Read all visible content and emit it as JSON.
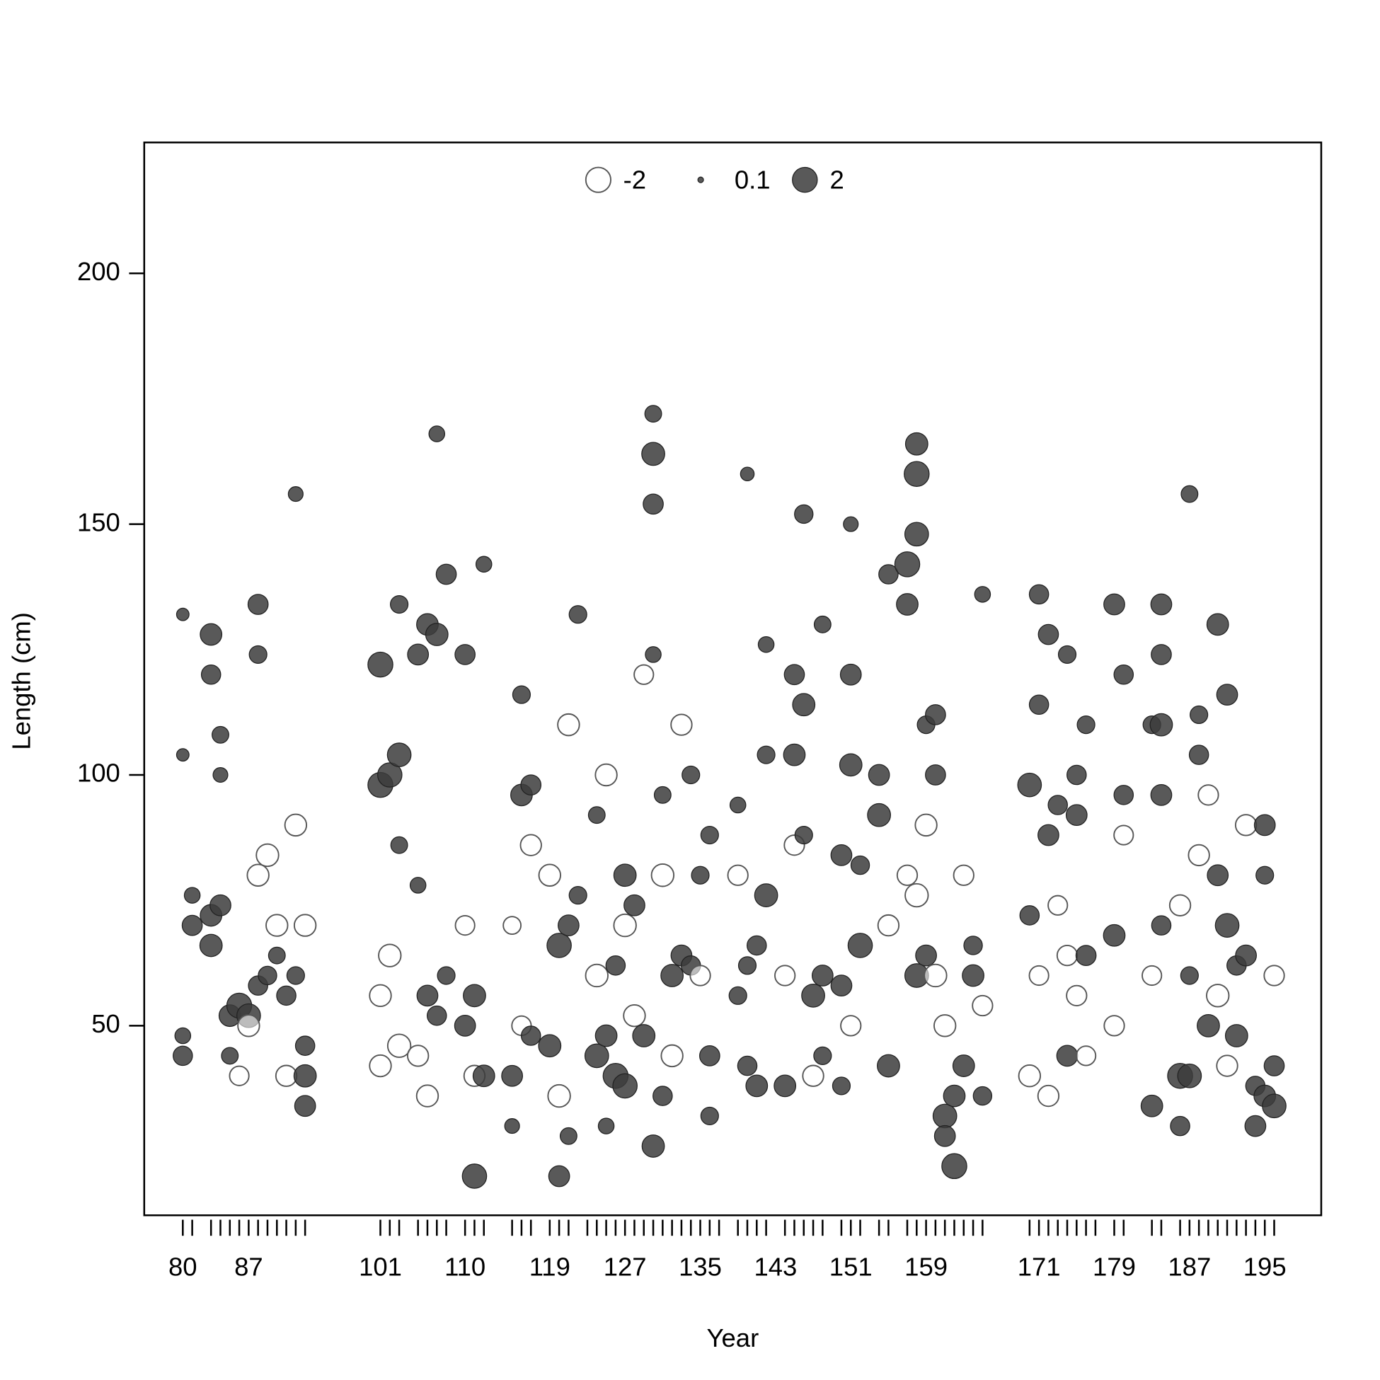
{
  "chart_data": {
    "type": "scatter",
    "x_label": "Year",
    "y_label": "Length (cm)",
    "xlim": [
      75.9,
      201
    ],
    "ylim": [
      12.2,
      226.1
    ],
    "xticks": [
      80,
      87,
      101,
      110,
      119,
      127,
      135,
      143,
      151,
      159,
      171,
      179,
      187,
      195
    ],
    "xminor": [
      80,
      81,
      83,
      84,
      85,
      86,
      87,
      88,
      89,
      90,
      91,
      92,
      93,
      101,
      102,
      103,
      105,
      106,
      107,
      108,
      110,
      111,
      112,
      115,
      116,
      117,
      119,
      120,
      121,
      123,
      124,
      125,
      126,
      127,
      128,
      129,
      130,
      131,
      132,
      133,
      134,
      135,
      136,
      137,
      139,
      140,
      141,
      142,
      144,
      145,
      146,
      147,
      148,
      150,
      151,
      152,
      154,
      155,
      157,
      158,
      159,
      160,
      161,
      162,
      163,
      164,
      165,
      170,
      171,
      172,
      173,
      174,
      175,
      176,
      177,
      179,
      180,
      183,
      184,
      186,
      187,
      188,
      189,
      190,
      191,
      192,
      193,
      194,
      195,
      196
    ],
    "yticks": [
      50,
      100,
      150,
      200
    ],
    "legend": {
      "values": [
        -2,
        0.1,
        2
      ]
    },
    "positive_color": "#3c3c3c",
    "negative_color": "#ffffff",
    "points": [
      [
        80,
        44,
        1.2
      ],
      [
        80,
        48,
        0.8
      ],
      [
        80,
        132,
        0.5
      ],
      [
        80,
        104,
        0.5
      ],
      [
        81,
        70,
        1.3
      ],
      [
        81,
        76,
        0.8
      ],
      [
        83,
        128,
        1.5
      ],
      [
        83,
        120,
        1.2
      ],
      [
        83,
        66,
        1.6
      ],
      [
        83,
        72,
        1.5
      ],
      [
        84,
        108,
        0.9
      ],
      [
        84,
        100,
        0.7
      ],
      [
        84,
        74,
        1.4
      ],
      [
        85,
        52,
        1.5
      ],
      [
        85,
        44,
        0.9
      ],
      [
        86,
        54,
        2.0
      ],
      [
        86,
        40,
        -1.2
      ],
      [
        87,
        52,
        1.8
      ],
      [
        87,
        50,
        -1.5
      ],
      [
        88,
        134,
        1.3
      ],
      [
        88,
        124,
        1.0
      ],
      [
        88,
        58,
        1.2
      ],
      [
        88,
        80,
        -1.5
      ],
      [
        89,
        60,
        1.1
      ],
      [
        89,
        84,
        -1.6
      ],
      [
        90,
        64,
        0.9
      ],
      [
        90,
        70,
        -1.5
      ],
      [
        91,
        56,
        1.2
      ],
      [
        91,
        40,
        -1.4
      ],
      [
        92,
        156,
        0.7
      ],
      [
        92,
        60,
        1.0
      ],
      [
        92,
        90,
        -1.5
      ],
      [
        93,
        40,
        1.6
      ],
      [
        93,
        34,
        1.4
      ],
      [
        93,
        46,
        1.2
      ],
      [
        93,
        70,
        -1.5
      ],
      [
        101,
        122,
        2.0
      ],
      [
        101,
        98,
        2.0
      ],
      [
        101,
        56,
        -1.5
      ],
      [
        101,
        42,
        -1.5
      ],
      [
        102,
        100,
        1.9
      ],
      [
        102,
        64,
        -1.6
      ],
      [
        103,
        104,
        1.8
      ],
      [
        103,
        134,
        1.0
      ],
      [
        103,
        86,
        0.9
      ],
      [
        103,
        46,
        -1.7
      ],
      [
        105,
        124,
        1.4
      ],
      [
        105,
        78,
        0.8
      ],
      [
        105,
        44,
        -1.4
      ],
      [
        106,
        130,
        1.5
      ],
      [
        106,
        56,
        1.4
      ],
      [
        106,
        36,
        -1.5
      ],
      [
        107,
        128,
        1.6
      ],
      [
        107,
        168,
        0.8
      ],
      [
        107,
        52,
        1.2
      ],
      [
        108,
        140,
        1.3
      ],
      [
        108,
        60,
        1.0
      ],
      [
        110,
        124,
        1.3
      ],
      [
        110,
        50,
        1.4
      ],
      [
        110,
        70,
        -1.2
      ],
      [
        111,
        56,
        1.6
      ],
      [
        111,
        20,
        1.9
      ],
      [
        111,
        40,
        -1.4
      ],
      [
        112,
        40,
        1.5
      ],
      [
        112,
        142,
        0.8
      ],
      [
        115,
        40,
        1.4
      ],
      [
        115,
        30,
        0.7
      ],
      [
        115,
        70,
        -1.0
      ],
      [
        116,
        96,
        1.5
      ],
      [
        116,
        116,
        1.0
      ],
      [
        116,
        50,
        -1.2
      ],
      [
        117,
        98,
        1.3
      ],
      [
        117,
        48,
        1.2
      ],
      [
        117,
        86,
        -1.4
      ],
      [
        119,
        46,
        1.6
      ],
      [
        119,
        80,
        -1.5
      ],
      [
        120,
        66,
        1.9
      ],
      [
        120,
        20,
        1.4
      ],
      [
        120,
        36,
        -1.6
      ],
      [
        121,
        70,
        1.4
      ],
      [
        121,
        28,
        0.9
      ],
      [
        121,
        110,
        -1.5
      ],
      [
        122,
        132,
        1.0
      ],
      [
        122,
        76,
        1.0
      ],
      [
        124,
        44,
        1.8
      ],
      [
        124,
        92,
        0.9
      ],
      [
        124,
        60,
        -1.6
      ],
      [
        125,
        48,
        1.5
      ],
      [
        125,
        30,
        0.8
      ],
      [
        125,
        100,
        -1.5
      ],
      [
        126,
        40,
        2.0
      ],
      [
        126,
        62,
        1.2
      ],
      [
        127,
        38,
        1.9
      ],
      [
        127,
        80,
        1.6
      ],
      [
        127,
        70,
        -1.6
      ],
      [
        128,
        74,
        1.4
      ],
      [
        128,
        52,
        -1.5
      ],
      [
        129,
        48,
        1.6
      ],
      [
        129,
        120,
        -1.2
      ],
      [
        130,
        164,
        1.7
      ],
      [
        130,
        154,
        1.3
      ],
      [
        130,
        172,
        0.9
      ],
      [
        130,
        26,
        1.6
      ],
      [
        130,
        124,
        0.8
      ],
      [
        131,
        96,
        0.9
      ],
      [
        131,
        36,
        1.2
      ],
      [
        131,
        80,
        -1.6
      ],
      [
        132,
        60,
        1.6
      ],
      [
        132,
        44,
        -1.5
      ],
      [
        133,
        64,
        1.4
      ],
      [
        133,
        110,
        -1.4
      ],
      [
        134,
        100,
        1.0
      ],
      [
        134,
        62,
        1.2
      ],
      [
        135,
        80,
        1.0
      ],
      [
        135,
        60,
        -1.3
      ],
      [
        136,
        44,
        1.3
      ],
      [
        136,
        88,
        1.0
      ],
      [
        136,
        32,
        1.0
      ],
      [
        139,
        56,
        1.0
      ],
      [
        139,
        94,
        0.8
      ],
      [
        139,
        80,
        -1.3
      ],
      [
        140,
        62,
        1.0
      ],
      [
        140,
        42,
        1.2
      ],
      [
        140,
        160,
        0.6
      ],
      [
        141,
        38,
        1.5
      ],
      [
        141,
        66,
        1.2
      ],
      [
        142,
        76,
        1.7
      ],
      [
        142,
        104,
        1.0
      ],
      [
        142,
        126,
        0.8
      ],
      [
        144,
        38,
        1.5
      ],
      [
        144,
        60,
        -1.3
      ],
      [
        145,
        104,
        1.5
      ],
      [
        145,
        120,
        1.3
      ],
      [
        145,
        86,
        -1.3
      ],
      [
        146,
        114,
        1.6
      ],
      [
        146,
        152,
        1.1
      ],
      [
        146,
        88,
        1.0
      ],
      [
        147,
        56,
        1.7
      ],
      [
        147,
        40,
        -1.4
      ],
      [
        148,
        60,
        1.4
      ],
      [
        148,
        44,
        1.0
      ],
      [
        148,
        130,
        0.9
      ],
      [
        150,
        84,
        1.4
      ],
      [
        150,
        58,
        1.4
      ],
      [
        150,
        38,
        1.0
      ],
      [
        151,
        120,
        1.4
      ],
      [
        151,
        102,
        1.6
      ],
      [
        151,
        150,
        0.7
      ],
      [
        151,
        50,
        -1.3
      ],
      [
        152,
        66,
        1.9
      ],
      [
        152,
        82,
        1.1
      ],
      [
        154,
        92,
        1.7
      ],
      [
        154,
        100,
        1.4
      ],
      [
        155,
        42,
        1.6
      ],
      [
        155,
        140,
        1.2
      ],
      [
        155,
        70,
        -1.4
      ],
      [
        157,
        142,
        2.0
      ],
      [
        157,
        134,
        1.5
      ],
      [
        157,
        80,
        -1.3
      ],
      [
        158,
        160,
        2.0
      ],
      [
        158,
        166,
        1.6
      ],
      [
        158,
        148,
        1.8
      ],
      [
        158,
        60,
        1.8
      ],
      [
        158,
        76,
        -1.7
      ],
      [
        159,
        64,
        1.4
      ],
      [
        159,
        110,
        1.0
      ],
      [
        159,
        90,
        -1.5
      ],
      [
        160,
        112,
        1.3
      ],
      [
        160,
        100,
        1.3
      ],
      [
        160,
        60,
        -1.6
      ],
      [
        161,
        32,
        1.8
      ],
      [
        161,
        28,
        1.4
      ],
      [
        161,
        50,
        -1.5
      ],
      [
        162,
        22,
        2.0
      ],
      [
        162,
        36,
        1.5
      ],
      [
        163,
        42,
        1.5
      ],
      [
        163,
        80,
        -1.3
      ],
      [
        164,
        60,
        1.5
      ],
      [
        164,
        66,
        1.1
      ],
      [
        165,
        36,
        1.1
      ],
      [
        165,
        136,
        0.8
      ],
      [
        165,
        54,
        -1.3
      ],
      [
        170,
        98,
        1.8
      ],
      [
        170,
        72,
        1.2
      ],
      [
        170,
        40,
        -1.5
      ],
      [
        171,
        136,
        1.2
      ],
      [
        171,
        114,
        1.2
      ],
      [
        171,
        60,
        -1.2
      ],
      [
        172,
        128,
        1.3
      ],
      [
        172,
        88,
        1.4
      ],
      [
        172,
        36,
        -1.4
      ],
      [
        173,
        94,
        1.2
      ],
      [
        173,
        74,
        -1.2
      ],
      [
        174,
        44,
        1.4
      ],
      [
        174,
        124,
        1.0
      ],
      [
        174,
        64,
        -1.3
      ],
      [
        175,
        92,
        1.4
      ],
      [
        175,
        100,
        1.2
      ],
      [
        175,
        56,
        -1.3
      ],
      [
        176,
        64,
        1.3
      ],
      [
        176,
        110,
        1.0
      ],
      [
        176,
        44,
        -1.2
      ],
      [
        179,
        134,
        1.4
      ],
      [
        179,
        68,
        1.5
      ],
      [
        179,
        50,
        -1.3
      ],
      [
        180,
        120,
        1.2
      ],
      [
        180,
        96,
        1.2
      ],
      [
        180,
        88,
        -1.2
      ],
      [
        183,
        34,
        1.5
      ],
      [
        183,
        110,
        1.0
      ],
      [
        183,
        60,
        -1.2
      ],
      [
        184,
        134,
        1.4
      ],
      [
        184,
        124,
        1.3
      ],
      [
        184,
        96,
        1.4
      ],
      [
        184,
        110,
        1.6
      ],
      [
        184,
        70,
        1.2
      ],
      [
        186,
        40,
        2.0
      ],
      [
        186,
        30,
        1.2
      ],
      [
        186,
        74,
        -1.4
      ],
      [
        187,
        40,
        1.8
      ],
      [
        187,
        156,
        0.9
      ],
      [
        187,
        60,
        1.0
      ],
      [
        188,
        104,
        1.2
      ],
      [
        188,
        112,
        1.0
      ],
      [
        188,
        84,
        -1.4
      ],
      [
        189,
        50,
        1.6
      ],
      [
        189,
        96,
        -1.3
      ],
      [
        190,
        130,
        1.5
      ],
      [
        190,
        80,
        1.4
      ],
      [
        190,
        56,
        -1.6
      ],
      [
        191,
        70,
        1.8
      ],
      [
        191,
        116,
        1.4
      ],
      [
        191,
        42,
        -1.4
      ],
      [
        192,
        48,
        1.6
      ],
      [
        192,
        62,
        1.2
      ],
      [
        193,
        64,
        1.4
      ],
      [
        193,
        90,
        -1.4
      ],
      [
        194,
        30,
        1.4
      ],
      [
        194,
        38,
        1.2
      ],
      [
        195,
        90,
        1.4
      ],
      [
        195,
        36,
        1.5
      ],
      [
        195,
        80,
        1.0
      ],
      [
        196,
        34,
        1.8
      ],
      [
        196,
        42,
        1.3
      ],
      [
        196,
        60,
        -1.3
      ]
    ]
  }
}
